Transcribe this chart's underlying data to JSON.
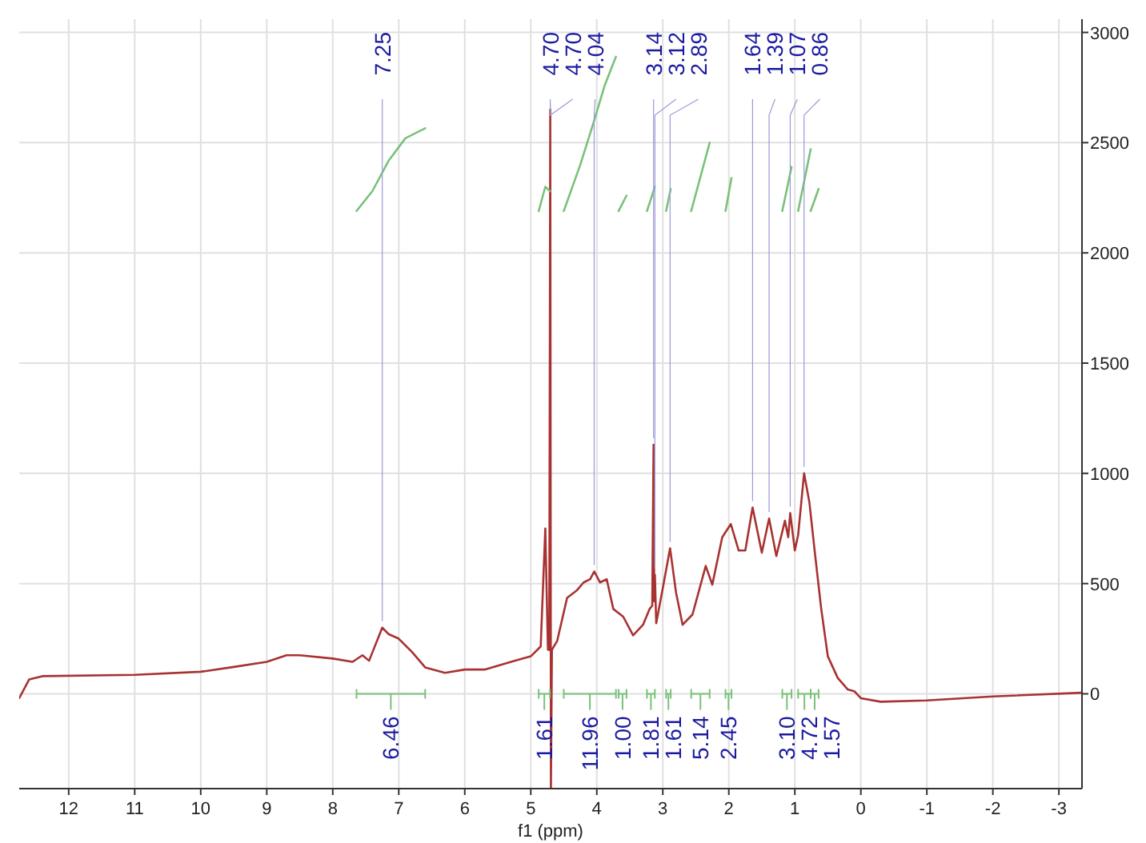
{
  "chart_data": {
    "type": "line",
    "xlabel": "f1 (ppm)",
    "xlim": [
      12.75,
      -3.35
    ],
    "ylim": [
      -430,
      3060
    ],
    "xticks": [
      12,
      11,
      10,
      9,
      8,
      7,
      6,
      5,
      4,
      3,
      2,
      1,
      0,
      -1,
      -2,
      -3
    ],
    "yticks": [
      0,
      500,
      1000,
      1500,
      2000,
      2500,
      3000
    ],
    "grid": true,
    "line_style": "solid",
    "marker": "none",
    "series": [
      {
        "color": "#a83232",
        "x": [
          12.75,
          12.6,
          12.4,
          11,
          10,
          9.5,
          9,
          8.7,
          8.5,
          8.0,
          7.7,
          7.55,
          7.45,
          7.25,
          7.15,
          7.0,
          6.8,
          6.6,
          6.3,
          6.0,
          5.7,
          5.3,
          5.0,
          4.85,
          4.78,
          4.74,
          4.72,
          4.705,
          4.695,
          4.68,
          4.6,
          4.45,
          4.3,
          4.2,
          4.1,
          4.04,
          3.95,
          3.85,
          3.75,
          3.6,
          3.45,
          3.3,
          3.2,
          3.16,
          3.14,
          3.13,
          3.12,
          3.1,
          3.0,
          2.89,
          2.8,
          2.7,
          2.55,
          2.35,
          2.25,
          2.1,
          1.97,
          1.85,
          1.75,
          1.64,
          1.5,
          1.39,
          1.28,
          1.15,
          1.1,
          1.07,
          1.0,
          0.95,
          0.86,
          0.78,
          0.7,
          0.6,
          0.5,
          0.35,
          0.2,
          0.1,
          0,
          -0.3,
          -1,
          -2,
          -3.35
        ],
        "values": [
          -20,
          65,
          80,
          86,
          100,
          122,
          145,
          175,
          175,
          160,
          145,
          175,
          150,
          300,
          270,
          250,
          190,
          120,
          95,
          110,
          110,
          145,
          170,
          215,
          750,
          200,
          200,
          2650,
          -430,
          200,
          240,
          435,
          470,
          505,
          520,
          555,
          505,
          520,
          385,
          350,
          265,
          313,
          385,
          400,
          1130,
          420,
          540,
          320,
          480,
          660,
          460,
          313,
          360,
          580,
          495,
          710,
          770,
          650,
          650,
          845,
          640,
          795,
          625,
          785,
          710,
          820,
          650,
          720,
          1000,
          870,
          650,
          385,
          170,
          72,
          20,
          12,
          -20,
          -36,
          -30,
          -12,
          5
        ]
      },
      {
        "color": "#7ac17a",
        "x": [
          7.64,
          7.4,
          7.15,
          6.9,
          6.6
        ],
        "values": [
          2190,
          2280,
          2420,
          2520,
          2565
        ]
      },
      {
        "color": "#7ac17a",
        "x": [
          4.88,
          4.78,
          4.71
        ],
        "values": [
          2190,
          2300,
          2280
        ]
      },
      {
        "color": "#7ac17a",
        "x": [
          4.5,
          4.25,
          4.05,
          3.88,
          3.71
        ],
        "values": [
          2190,
          2400,
          2590,
          2760,
          2890
        ]
      },
      {
        "color": "#7ac17a",
        "x": [
          3.67,
          3.55
        ],
        "values": [
          2190,
          2260
        ]
      },
      {
        "color": "#7ac17a",
        "x": [
          3.24,
          3.12
        ],
        "values": [
          2190,
          2300
        ]
      },
      {
        "color": "#7ac17a",
        "x": [
          2.95,
          2.88
        ],
        "values": [
          2190,
          2290
        ]
      },
      {
        "color": "#7ac17a",
        "x": [
          2.57,
          2.29
        ],
        "values": [
          2190,
          2500
        ]
      },
      {
        "color": "#7ac17a",
        "x": [
          2.05,
          1.96
        ],
        "values": [
          2190,
          2340
        ]
      },
      {
        "color": "#7ac17a",
        "x": [
          1.19,
          1.05
        ],
        "values": [
          2190,
          2390
        ]
      },
      {
        "color": "#7ac17a",
        "x": [
          0.95,
          0.76
        ],
        "values": [
          2190,
          2470
        ]
      },
      {
        "color": "#7ac17a",
        "x": [
          0.76,
          0.64
        ],
        "values": [
          2190,
          2290
        ]
      }
    ],
    "annotations": [
      {
        "text": "7.25",
        "x": 7.25,
        "y": 300
      },
      {
        "text": "4.70",
        "x": 4.705,
        "y": 2650
      },
      {
        "text": "4.70",
        "x": 4.705,
        "y": 2650
      },
      {
        "text": "4.04",
        "x": 4.04,
        "y": 555
      },
      {
        "text": "3.14",
        "x": 3.14,
        "y": 1130
      },
      {
        "text": "3.12",
        "x": 3.12,
        "y": 540
      },
      {
        "text": "2.89",
        "x": 2.89,
        "y": 660
      },
      {
        "text": "1.64",
        "x": 1.64,
        "y": 845
      },
      {
        "text": "1.39",
        "x": 1.39,
        "y": 795
      },
      {
        "text": "1.07",
        "x": 1.07,
        "y": 820
      },
      {
        "text": "0.86",
        "x": 0.86,
        "y": 1000
      },
      "6.46",
      "1.61",
      "11.96",
      "1.00",
      "1.81",
      "1.61",
      "5.14",
      "2.45",
      "3.10",
      "4.72",
      "1.57"
    ]
  }
}
